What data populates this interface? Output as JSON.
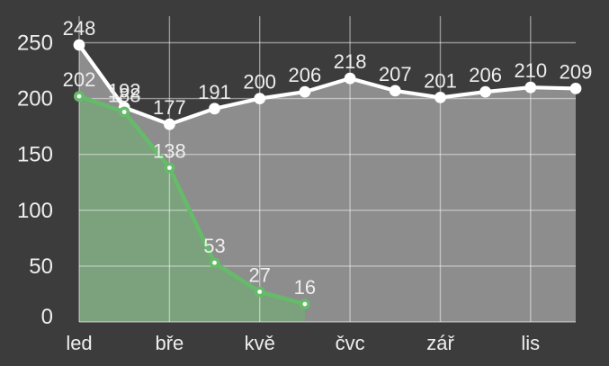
{
  "chart_data": {
    "type": "line",
    "title": "",
    "xlabel": "",
    "ylabel": "",
    "background_color": "#3c3c3c",
    "text_color": "#eeeeee",
    "gridline_color": "rgba(255,255,255,0.46)",
    "grid": true,
    "legend_position": "none",
    "ylim": [
      0,
      250
    ],
    "y_ticks": [
      0,
      50,
      100,
      150,
      200,
      250
    ],
    "y_tick_labels": [
      "0",
      "50",
      "100",
      "150",
      "200",
      "250"
    ],
    "x_tick_labels": [
      "led",
      "bře",
      "kvě",
      "čvc",
      "zář",
      "lis"
    ],
    "x_points_per_tick": 2,
    "total_x_points": 12,
    "series": [
      {
        "name": "series-white",
        "line_color": "#ffffff",
        "area_fill": "rgba(255,255,255,0.42)",
        "marker": "circle",
        "values": [
          248,
          192,
          177,
          191,
          200,
          206,
          218,
          207,
          201,
          206,
          210,
          209
        ],
        "data_labels": [
          "248",
          "192",
          "177",
          "191",
          "200",
          "206",
          "218",
          "207",
          "201",
          "206",
          "210",
          "209"
        ]
      },
      {
        "name": "series-green",
        "line_color": "#66bb6a",
        "area_fill": "rgba(102,187,106,0.45)",
        "marker": "circle-dot",
        "values": [
          202,
          188,
          138,
          53,
          27,
          16
        ],
        "data_labels": [
          "202",
          "188",
          "138",
          "53",
          "27",
          "16"
        ]
      }
    ]
  }
}
